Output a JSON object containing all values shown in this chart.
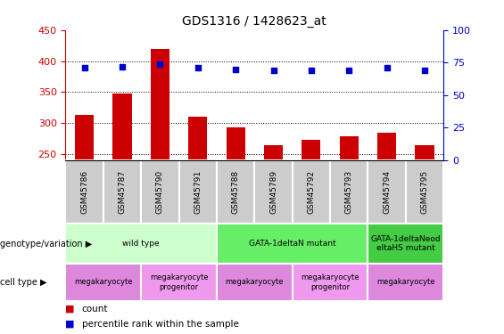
{
  "title": "GDS1316 / 1428623_at",
  "samples": [
    "GSM45786",
    "GSM45787",
    "GSM45790",
    "GSM45791",
    "GSM45788",
    "GSM45789",
    "GSM45792",
    "GSM45793",
    "GSM45794",
    "GSM45795"
  ],
  "counts": [
    313,
    347,
    419,
    311,
    293,
    265,
    273,
    279,
    285,
    265
  ],
  "percentiles": [
    71,
    72,
    74,
    71,
    70,
    69,
    69,
    69,
    71,
    69
  ],
  "ylim_left": [
    240,
    450
  ],
  "ylim_right": [
    0,
    100
  ],
  "bar_color": "#cc0000",
  "dot_color": "#0000cc",
  "genotype_groups": [
    {
      "label": "wild type",
      "start": 0,
      "end": 4,
      "color": "#ccffcc"
    },
    {
      "label": "GATA-1deltaN mutant",
      "start": 4,
      "end": 8,
      "color": "#66ee66"
    },
    {
      "label": "GATA-1deltaNeod\neltaHS mutant",
      "start": 8,
      "end": 10,
      "color": "#44cc44"
    }
  ],
  "cell_type_groups": [
    {
      "label": "megakaryocyte",
      "start": 0,
      "end": 2,
      "color": "#dd88dd"
    },
    {
      "label": "megakaryocyte\nprogenitor",
      "start": 2,
      "end": 4,
      "color": "#ee99ee"
    },
    {
      "label": "megakaryocyte",
      "start": 4,
      "end": 6,
      "color": "#dd88dd"
    },
    {
      "label": "megakaryocyte\nprogenitor",
      "start": 6,
      "end": 8,
      "color": "#ee99ee"
    },
    {
      "label": "megakaryocyte",
      "start": 8,
      "end": 10,
      "color": "#dd88dd"
    }
  ],
  "left_yticks": [
    250,
    300,
    350,
    400,
    450
  ],
  "right_yticks": [
    0,
    25,
    50,
    75,
    100
  ],
  "sample_bg": "#cccccc",
  "bar_width": 0.5
}
